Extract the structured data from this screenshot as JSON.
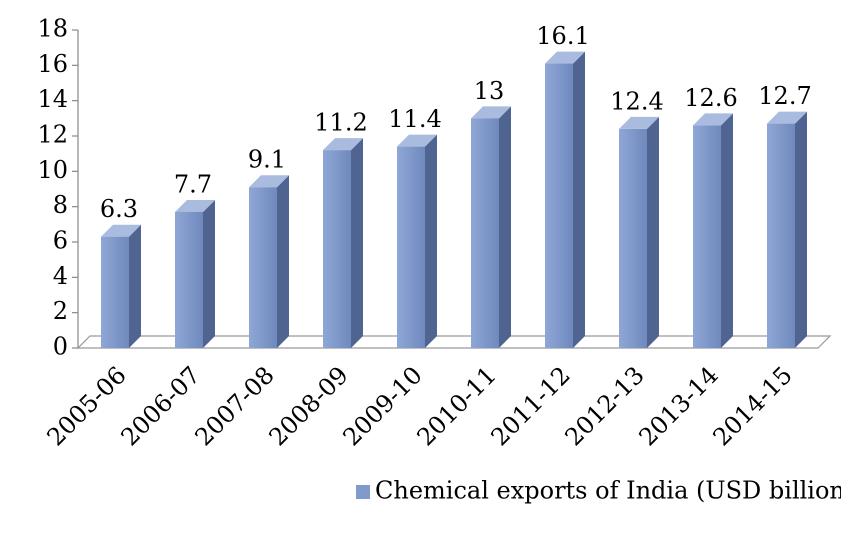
{
  "chart_data": {
    "type": "bar3d",
    "categories": [
      "2005-06",
      "2006-07",
      "2007-08",
      "2008-09",
      "2009-10",
      "2010-11",
      "2011-12",
      "2012-13",
      "2013-14",
      "2014-15"
    ],
    "series": [
      {
        "name": "Chemical exports of India (USD billion)",
        "color": "#7f9acb",
        "values": [
          6.3,
          7.7,
          9.1,
          11.2,
          11.4,
          13,
          16.1,
          12.4,
          12.6,
          12.7
        ]
      }
    ],
    "ylim": [
      0,
      18
    ],
    "yticks": [
      0,
      2,
      4,
      6,
      8,
      10,
      12,
      14,
      16,
      18
    ],
    "legend": "bottom"
  }
}
